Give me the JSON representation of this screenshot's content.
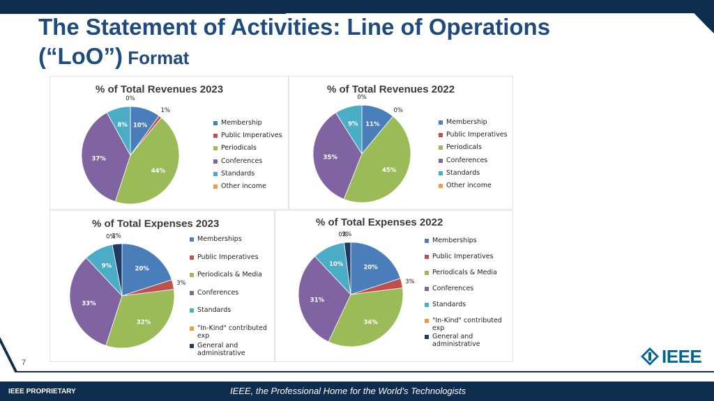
{
  "slide": {
    "title_line1": "The Statement of Activities: Line of Operations",
    "title_line2a": "(“LoO”)",
    "title_line2b": " Format",
    "slide_number": "7",
    "footer_left": "IEEE PROPRIETARY",
    "footer_tagline": "IEEE, the Professional Home for the World’s Technologists",
    "logo_text": "IEEE"
  },
  "chart_data": [
    {
      "type": "pie",
      "title": "% of Total Revenues 2023",
      "categories": [
        "Membership",
        "Public Imperatives",
        "Periodicals",
        "Conferences",
        "Standards",
        "Other income"
      ],
      "values": [
        10,
        1,
        44,
        37,
        8,
        0
      ],
      "labels": [
        "10%",
        "1%",
        "44%",
        "37%",
        "8%",
        "0%"
      ],
      "colors": [
        "#4a7ebb",
        "#c0504d",
        "#9bbb59",
        "#8064a2",
        "#4bacc6",
        "#f79646"
      ],
      "legend": "right"
    },
    {
      "type": "pie",
      "title": "% of Total Revenues 2022",
      "categories": [
        "Membership",
        "Public Imperatives",
        "Periodicals",
        "Conferences",
        "Standards",
        "Other income"
      ],
      "values": [
        11,
        0,
        45,
        35,
        9,
        0
      ],
      "labels": [
        "11%",
        "0%",
        "45%",
        "35%",
        "9%",
        "0%"
      ],
      "colors": [
        "#4a7ebb",
        "#c0504d",
        "#9bbb59",
        "#8064a2",
        "#4bacc6",
        "#f79646"
      ],
      "legend": "right"
    },
    {
      "type": "pie",
      "title": "% of Total Expenses 2023",
      "categories": [
        "Memberships",
        "Public Imperatives",
        "Periodicals & Media",
        "Conferences",
        "Standards",
        "\"In-Kind\" contributed exp",
        "General and administrative"
      ],
      "values": [
        20,
        3,
        32,
        33,
        9,
        0,
        3
      ],
      "labels": [
        "20%",
        "3%",
        "32%",
        "33%",
        "9%",
        "0%",
        "3%"
      ],
      "colors": [
        "#4a7ebb",
        "#c0504d",
        "#9bbb59",
        "#8064a2",
        "#4bacc6",
        "#f79646",
        "#1f3864"
      ],
      "legend": "right"
    },
    {
      "type": "pie",
      "title": "% of Total Expenses 2022",
      "categories": [
        "Memberships",
        "Public Imperatives",
        "Periodicals & Media",
        "Conferences",
        "Standards",
        "\"In-Kind\" contributed exp",
        "General and administrative"
      ],
      "values": [
        20,
        3,
        34,
        31,
        10,
        0,
        2
      ],
      "labels": [
        "20%",
        "3%",
        "34%",
        "31%",
        "10%",
        "0%",
        "2%"
      ],
      "colors": [
        "#4a7ebb",
        "#c0504d",
        "#9bbb59",
        "#8064a2",
        "#4bacc6",
        "#f79646",
        "#1f3864"
      ],
      "legend": "right"
    }
  ]
}
